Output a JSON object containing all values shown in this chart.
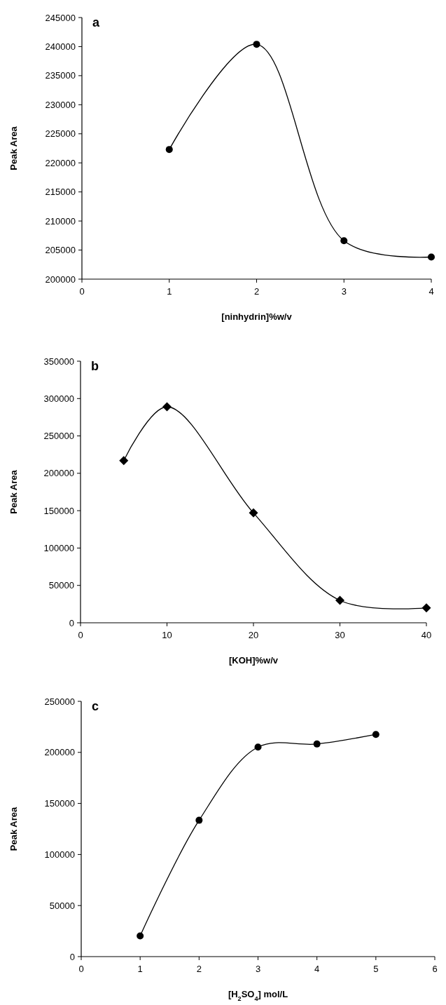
{
  "chart_data": [
    {
      "type": "line",
      "title": "a",
      "xlabel": "[ninhydrin]%w/v",
      "ylabel": "Peak Area",
      "x": [
        1,
        2,
        3,
        4
      ],
      "series": [
        {
          "color": "#000000",
          "values": [
            222300,
            240400,
            206600,
            203800
          ]
        }
      ],
      "xlim": [
        0,
        4
      ],
      "xticks": [
        0,
        1,
        2,
        3,
        4
      ],
      "ylim": [
        200000,
        245000
      ],
      "yticks": [
        200000,
        205000,
        210000,
        215000,
        220000,
        225000,
        230000,
        235000,
        240000,
        245000
      ],
      "marker": "circle"
    },
    {
      "type": "line",
      "title": "b",
      "xlabel": "[KOH]%w/v",
      "ylabel": "Peak Area",
      "x": [
        5,
        10,
        20,
        30,
        40
      ],
      "series": [
        {
          "color": "#000000",
          "values": [
            217000,
            289000,
            147000,
            30000,
            20000
          ]
        }
      ],
      "xlim": [
        0,
        40
      ],
      "xticks": [
        0,
        10,
        20,
        30,
        40
      ],
      "ylim": [
        0,
        350000
      ],
      "yticks": [
        0,
        50000,
        100000,
        150000,
        200000,
        250000,
        300000,
        350000
      ],
      "marker": "diamond"
    },
    {
      "type": "line",
      "title": "c",
      "xlabel": "[H$_{2}$SO$_{4}$] mol/L",
      "ylabel": "Peak Area",
      "x": [
        1,
        2,
        3,
        4,
        5
      ],
      "series": [
        {
          "color": "#000000",
          "values": [
            20300,
            133500,
            205200,
            208200,
            217600
          ]
        }
      ],
      "xlim": [
        0,
        6
      ],
      "xticks": [
        0,
        1,
        2,
        3,
        4,
        5,
        6
      ],
      "ylim": [
        0,
        250000
      ],
      "yticks": [
        0,
        50000,
        100000,
        150000,
        200000,
        250000
      ],
      "marker": "circle"
    }
  ]
}
